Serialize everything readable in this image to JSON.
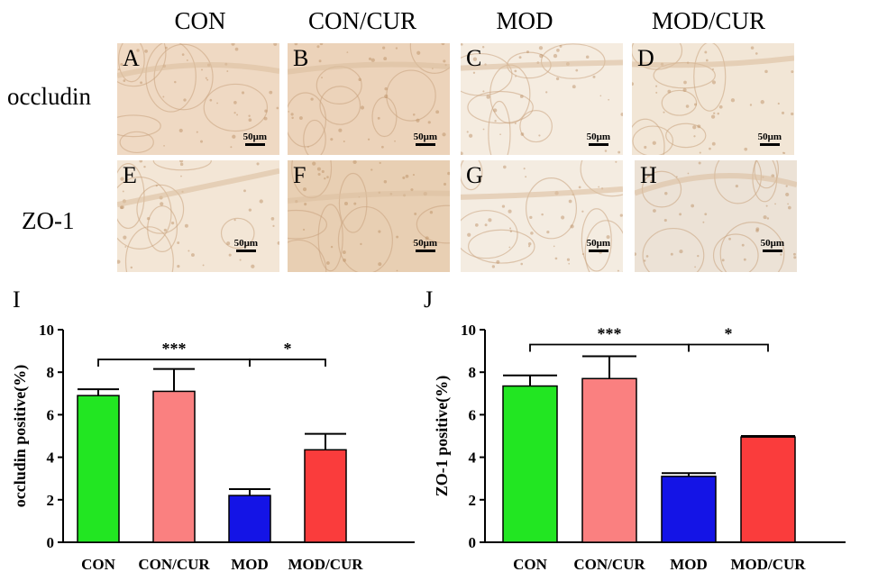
{
  "columns": [
    "CON",
    "CON/CUR",
    "MOD",
    "MOD/CUR"
  ],
  "rows": [
    "occludin",
    "ZO-1"
  ],
  "panels": [
    {
      "label": "A",
      "scale": "50μm",
      "tone": "#efd9c3"
    },
    {
      "label": "B",
      "scale": "50μm",
      "tone": "#ecd3ba"
    },
    {
      "label": "C",
      "scale": "50μm",
      "tone": "#f5ece0"
    },
    {
      "label": "D",
      "scale": "50μm",
      "tone": "#f2e6d6"
    },
    {
      "label": "E",
      "scale": "50μm",
      "tone": "#f3e6d6"
    },
    {
      "label": "F",
      "scale": "50μm",
      "tone": "#e8cfb3"
    },
    {
      "label": "G",
      "scale": "50μm",
      "tone": "#f4ece1"
    },
    {
      "label": "H",
      "scale": "50μm",
      "tone": "#ece2d6"
    }
  ],
  "chart_data": [
    {
      "panel_letter": "I",
      "type": "bar",
      "categories": [
        "CON",
        "CON/CUR",
        "MOD",
        "MOD/CUR"
      ],
      "values": [
        6.9,
        7.1,
        2.2,
        4.35
      ],
      "errors": [
        0.3,
        1.05,
        0.3,
        0.75
      ],
      "colors": [
        "#22e622",
        "#fa8080",
        "#1414e6",
        "#fa3c3c"
      ],
      "ylabel": "occludin positive(%)",
      "ylim": [
        0,
        10
      ],
      "yticks": [
        0,
        2,
        4,
        6,
        8,
        10
      ],
      "brackets": [
        {
          "from": 0,
          "to": 2,
          "label": "***",
          "y": 8.6
        },
        {
          "from": 2,
          "to": 3,
          "label": "*",
          "y": 8.6
        }
      ]
    },
    {
      "panel_letter": "J",
      "type": "bar",
      "categories": [
        "CON",
        "CON/CUR",
        "MOD",
        "MOD/CUR"
      ],
      "values": [
        7.35,
        7.7,
        3.1,
        4.95
      ],
      "errors": [
        0.5,
        1.05,
        0.15,
        0.05
      ],
      "colors": [
        "#22e622",
        "#fa8080",
        "#1414e6",
        "#fa3c3c"
      ],
      "ylabel": "ZO-1 positive(%)",
      "ylim": [
        0,
        10
      ],
      "yticks": [
        0,
        2,
        4,
        6,
        8,
        10
      ],
      "brackets": [
        {
          "from": 0,
          "to": 2,
          "label": "***",
          "y": 9.3
        },
        {
          "from": 2,
          "to": 3,
          "label": "*",
          "y": 9.3
        }
      ]
    }
  ]
}
